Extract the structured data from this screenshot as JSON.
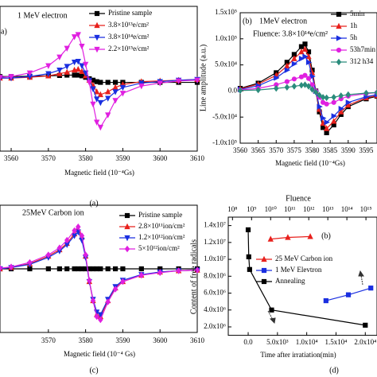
{
  "chart_data": [
    {
      "type": "line",
      "panel_label": "a)",
      "annotations": [
        "1 MeV electron"
      ],
      "xlabel": "Magnetic field (10⁻⁴Gs)",
      "caption": "(a)",
      "x": [
        3557,
        3560,
        3565,
        3570,
        3573,
        3575,
        3577,
        3578,
        3579,
        3580,
        3581,
        3582,
        3583,
        3584,
        3586,
        3588,
        3590,
        3595,
        3600,
        3605,
        3610
      ],
      "xlim": [
        3557,
        3610
      ],
      "xticks": [
        3560,
        3570,
        3580,
        3590,
        3600,
        3610
      ],
      "ylim": [
        -1,
        1
      ],
      "series": [
        {
          "name": "Pristine sample",
          "color": "#000000",
          "marker": "square",
          "values": [
            0.03,
            0.03,
            0.035,
            0.04,
            0.045,
            0.05,
            0.05,
            0.05,
            0.04,
            0.02,
            0,
            -0.02,
            -0.04,
            -0.05,
            -0.05,
            -0.05,
            -0.05,
            -0.05,
            -0.05,
            -0.05,
            -0.05
          ]
        },
        {
          "name": "3.8×10¹³e/cm²",
          "color": "#e8201c",
          "marker": "triangle-up",
          "values": [
            0.01,
            0.01,
            0.02,
            0.04,
            0.07,
            0.09,
            0.12,
            0.13,
            0.1,
            0.04,
            -0.02,
            -0.09,
            -0.18,
            -0.22,
            -0.18,
            -0.12,
            -0.08,
            -0.04,
            -0.03,
            -0.02,
            -0.01
          ]
        },
        {
          "name": "3.8×10¹⁴e/cm²",
          "color": "#1a2fe0",
          "marker": "triangle-down",
          "values": [
            0.01,
            0.01,
            0.03,
            0.07,
            0.12,
            0.17,
            0.23,
            0.24,
            0.18,
            0.08,
            -0.02,
            -0.14,
            -0.28,
            -0.33,
            -0.27,
            -0.18,
            -0.12,
            -0.06,
            -0.04,
            -0.02,
            -0.01
          ]
        },
        {
          "name": "2.2×10¹⁵e/cm²",
          "color": "#e020e0",
          "marker": "triangle-down",
          "values": [
            0.02,
            0.03,
            0.08,
            0.18,
            0.3,
            0.42,
            0.58,
            0.61,
            0.45,
            0.2,
            -0.05,
            -0.35,
            -0.6,
            -0.67,
            -0.5,
            -0.3,
            -0.2,
            -0.1,
            -0.06,
            -0.03,
            -0.02
          ]
        }
      ]
    },
    {
      "type": "line",
      "panel_label": "(b)",
      "annotations": [
        "1MeV electron",
        "Fluence: 3.8×10¹⁴e/cm²"
      ],
      "xlabel": "Magnetic field (10⁻⁴Gs)",
      "ylabel": "Line amplitude (a.u.)",
      "caption": "(b)",
      "x": [
        3560,
        3565,
        3570,
        3573,
        3575,
        3577,
        3578,
        3579,
        3580,
        3581,
        3582,
        3583,
        3584,
        3586,
        3588,
        3590,
        3595,
        3598
      ],
      "xlim": [
        3560,
        3598
      ],
      "xticks": [
        3560,
        3565,
        3570,
        3575,
        3580,
        3585,
        3590,
        3595
      ],
      "ylim": [
        -100000,
        150000
      ],
      "yticks": [
        {
          "value": -100000,
          "label": "-1.0x10⁵"
        },
        {
          "value": -50000,
          "label": "-5.0x10⁴"
        },
        {
          "value": 0,
          "label": "0.0"
        },
        {
          "value": 50000,
          "label": "5.0x10⁴"
        },
        {
          "value": 100000,
          "label": "1.0x10⁵"
        },
        {
          "value": 150000,
          "label": "1.5x10⁵"
        }
      ],
      "series": [
        {
          "name": "5min",
          "color": "#000000",
          "marker": "square",
          "values": [
            5000,
            15000,
            35000,
            55000,
            70000,
            85000,
            90000,
            75000,
            40000,
            0,
            -40000,
            -70000,
            -80000,
            -65000,
            -45000,
            -30000,
            -15000,
            -10000
          ]
        },
        {
          "name": "1h",
          "color": "#e8201c",
          "marker": "triangle-up",
          "values": [
            4000,
            13000,
            30000,
            48000,
            62000,
            75000,
            80000,
            66000,
            35000,
            0,
            -35000,
            -62000,
            -72000,
            -58000,
            -40000,
            -27000,
            -13000,
            -9000
          ]
        },
        {
          "name": "5h",
          "color": "#1a2fe0",
          "marker": "triangle-right",
          "values": [
            3000,
            10000,
            25000,
            40000,
            52000,
            62000,
            66000,
            55000,
            28000,
            0,
            -30000,
            -52000,
            -60000,
            -48000,
            -34000,
            -22000,
            -11000,
            -7000
          ]
        },
        {
          "name": "53h7min",
          "color": "#e020e0",
          "marker": "circle",
          "values": [
            2000,
            5000,
            12000,
            18000,
            23000,
            27000,
            30000,
            24000,
            12000,
            0,
            -12000,
            -22000,
            -25000,
            -22000,
            -15000,
            -10000,
            -5000,
            -3000
          ]
        },
        {
          "name": "312 h34",
          "color": "#2b8c7c",
          "marker": "diamond",
          "values": [
            1000,
            2000,
            5000,
            7000,
            9000,
            11000,
            12000,
            9000,
            3000,
            -2000,
            -8000,
            -12000,
            -13000,
            -12000,
            -9000,
            -7000,
            -4000,
            -3000
          ]
        }
      ]
    },
    {
      "type": "line",
      "annotations": [
        "25MeV Carbon ion"
      ],
      "xlabel": "Magnetic field (10⁻⁴ Gs)",
      "caption": "(c)",
      "x": [
        3557,
        3560,
        3565,
        3570,
        3573,
        3575,
        3577,
        3578,
        3579,
        3580,
        3581,
        3582,
        3583,
        3584,
        3586,
        3588,
        3590,
        3595,
        3600,
        3605,
        3610
      ],
      "xlim": [
        3557,
        3610
      ],
      "xticks": [
        3570,
        3580,
        3590,
        3600,
        3610
      ],
      "ylim": [
        -1,
        1
      ],
      "series": [
        {
          "name": "Pristine sample",
          "color": "#000000",
          "marker": "square",
          "values": [
            0,
            0,
            0,
            0,
            0,
            0,
            0,
            0,
            0,
            0,
            0,
            0,
            0,
            0,
            0,
            0,
            0,
            0,
            0,
            0,
            0
          ]
        },
        {
          "name": "2.8×10¹¹ion/cm²",
          "color": "#e8201c",
          "marker": "triangle-up",
          "values": [
            0,
            0.02,
            0.08,
            0.2,
            0.3,
            0.4,
            0.55,
            0.62,
            0.5,
            0.2,
            -0.2,
            -0.5,
            -0.72,
            -0.75,
            -0.5,
            -0.3,
            -0.2,
            -0.1,
            -0.05,
            -0.03,
            -0.02
          ]
        },
        {
          "name": "1.2×10¹²ion/cm²",
          "color": "#1a2fe0",
          "marker": "triangle-down",
          "values": [
            0,
            0.02,
            0.07,
            0.18,
            0.28,
            0.38,
            0.52,
            0.58,
            0.45,
            0.18,
            -0.2,
            -0.48,
            -0.68,
            -0.72,
            -0.48,
            -0.28,
            -0.18,
            -0.09,
            -0.05,
            -0.03,
            -0.02
          ]
        },
        {
          "name": "5×10¹²ion/cm²",
          "color": "#e020e0",
          "marker": "diamond",
          "values": [
            0.01,
            0.03,
            0.1,
            0.22,
            0.33,
            0.45,
            0.6,
            0.66,
            0.52,
            0.22,
            -0.18,
            -0.5,
            -0.75,
            -0.8,
            -0.52,
            -0.32,
            -0.2,
            -0.1,
            -0.06,
            -0.03,
            -0.02
          ]
        }
      ]
    },
    {
      "type": "line",
      "x2label": "Fluence",
      "xlabel": "Time after irratiation(min)",
      "ylabel": "Content of free radicals",
      "caption": "(d)",
      "xlim": [
        -3400,
        22000
      ],
      "xticks": [
        {
          "value": 0,
          "label": "0.0"
        },
        {
          "value": 5000,
          "label": "5.0x10³"
        },
        {
          "value": 10000,
          "label": "1.0x10⁴"
        },
        {
          "value": 15000,
          "label": "1.5x10⁴"
        },
        {
          "value": 20000,
          "label": "2.0x10⁴"
        }
      ],
      "x2lim": [
        60000000,
        3800000000000000
      ],
      "x2scale": "log",
      "x2ticks": [
        {
          "value": 100000000.0,
          "label": "10⁸"
        },
        {
          "value": 1000000000.0,
          "label": "10⁹"
        },
        {
          "value": 10000000000.0,
          "label": "10¹⁰"
        },
        {
          "value": 100000000000.0,
          "label": "10¹¹"
        },
        {
          "value": 1000000000000.0,
          "label": "10¹²"
        },
        {
          "value": 10000000000000.0,
          "label": "10¹³"
        },
        {
          "value": 100000000000000.0,
          "label": "10¹⁴"
        },
        {
          "value": 1000000000000000.0,
          "label": "10¹⁵"
        }
      ],
      "ylim": [
        1000000,
        15000000
      ],
      "yticks": [
        {
          "value": 2000000,
          "label": "2.0x10⁶"
        },
        {
          "value": 4000000,
          "label": "4.0x10⁶"
        },
        {
          "value": 6000000,
          "label": "6.0x10⁶"
        },
        {
          "value": 8000000,
          "label": "8.0x10⁶"
        },
        {
          "value": 10000000,
          "label": "1.0x10⁷"
        },
        {
          "value": 12000000,
          "label": "1.2x10⁷"
        },
        {
          "value": 14000000,
          "label": "1.4x10⁷"
        }
      ],
      "series": [
        {
          "name": "25 MeV Carbon ion",
          "color": "#e8201c",
          "marker": "triangle-up",
          "axis": "x2",
          "x": [
            10000000000.0,
            80000000000.0,
            1200000000000.0
          ],
          "values": [
            12400000,
            12600000,
            12700000
          ]
        },
        {
          "name": "1 MeV Elevtron",
          "color": "#1a2fe0",
          "marker": "square",
          "axis": "x2",
          "x": [
            8000000000000.0,
            120000000000000.0,
            1800000000000000.0
          ],
          "values": [
            5100000,
            5800000,
            6600000
          ]
        },
        {
          "name": "Annealing",
          "color": "#000000",
          "marker": "square",
          "x": [
            0,
            100,
            250,
            4000,
            20000
          ],
          "values": [
            13500000,
            10300000,
            8800000,
            4000000,
            2200000
          ]
        }
      ]
    }
  ]
}
